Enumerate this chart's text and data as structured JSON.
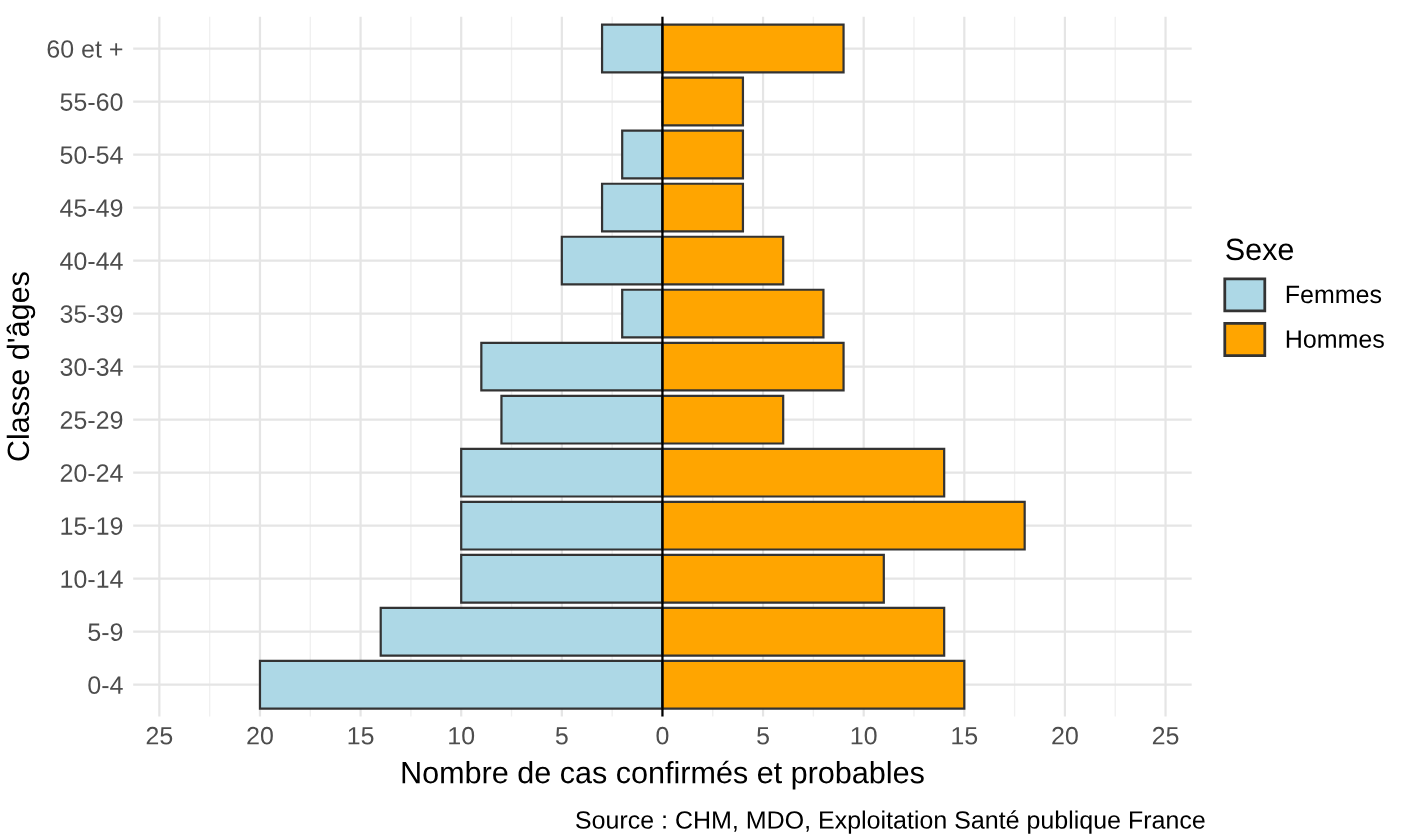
{
  "chart_data": {
    "type": "bar",
    "orientation": "horizontal",
    "stacked": true,
    "xlabel": "Nombre de cas confirmés et probables",
    "ylabel": "Classe d'âges",
    "legend_title": "Sexe",
    "legend": "right",
    "categories": [
      "60 et +",
      "55-60",
      "50-54",
      "45-49",
      "40-44",
      "35-39",
      "30-34",
      "25-29",
      "20-24",
      "15-19",
      "10-14",
      "5-9",
      "0-4"
    ],
    "series": [
      {
        "name": "Femmes",
        "color": "#add8e6",
        "values": [
          -3,
          null,
          -2,
          -3,
          -5,
          -2,
          -9,
          -8,
          -10,
          -10,
          -10,
          -14,
          -20
        ]
      },
      {
        "name": "Hommes",
        "color": "#ffa500",
        "values": [
          9,
          4,
          4,
          4,
          6,
          8,
          9,
          6,
          14,
          18,
          11,
          14,
          15
        ]
      }
    ],
    "xlim": [
      -26.3,
      26.3
    ],
    "xticks": [
      {
        "value": -25,
        "label": "25"
      },
      {
        "value": -20,
        "label": "20"
      },
      {
        "value": -15,
        "label": "15"
      },
      {
        "value": -10,
        "label": "10"
      },
      {
        "value": -5,
        "label": "5"
      },
      0,
      5,
      10,
      15,
      20,
      25
    ],
    "grid": true,
    "annotations": [
      "Source : CHM, MDO, Exploitation Santé publique France"
    ]
  }
}
